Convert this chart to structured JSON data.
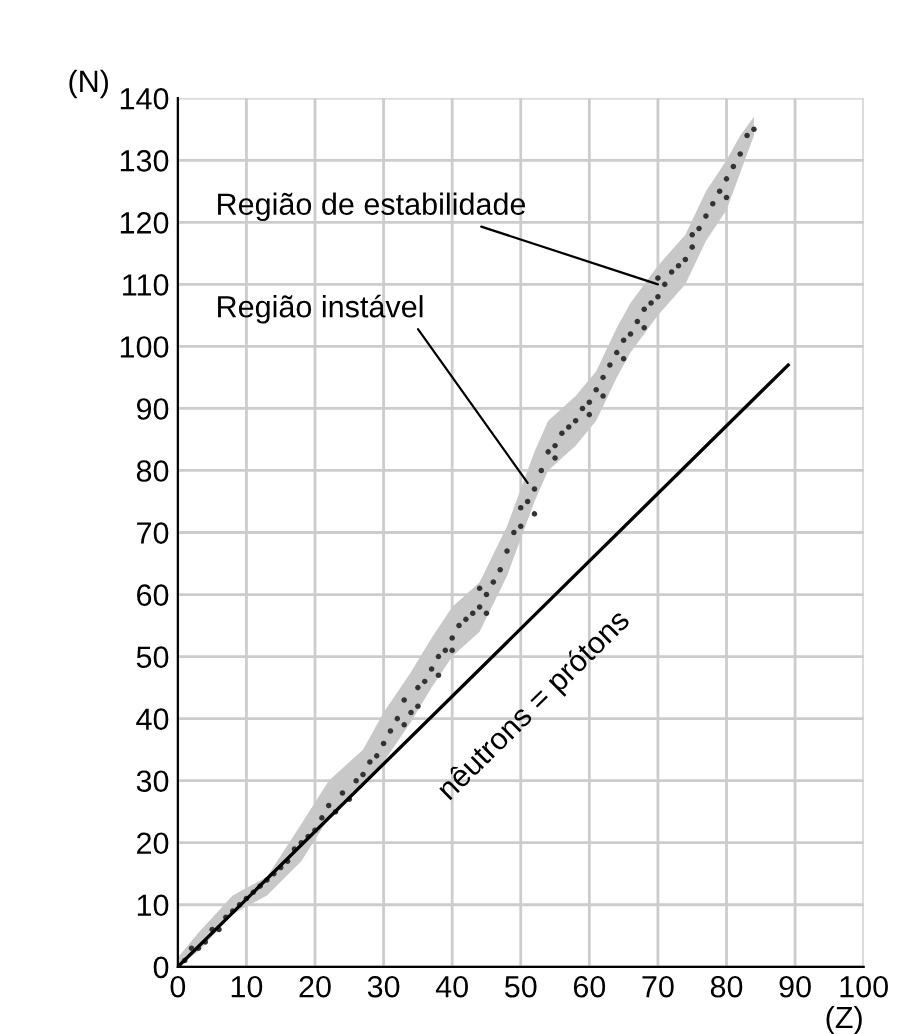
{
  "chart_data": {
    "type": "scatter",
    "xlabel": "(Z)",
    "ylabel": "(N)",
    "xlim": [
      0,
      100
    ],
    "ylim": [
      0,
      140
    ],
    "xticks": [
      0,
      10,
      20,
      30,
      40,
      50,
      60,
      70,
      80,
      90,
      100
    ],
    "yticks": [
      0,
      10,
      20,
      30,
      40,
      50,
      60,
      70,
      80,
      90,
      100,
      110,
      120,
      130,
      140
    ],
    "grid": true,
    "series": [
      {
        "type": "line",
        "color": "#c8c8c8",
        "x": [
          0,
          3,
          8,
          13,
          18,
          22,
          27,
          30,
          34,
          37,
          40,
          44,
          48,
          50,
          52,
          54,
          58,
          61,
          64,
          66,
          70,
          74,
          77,
          80,
          82,
          84
        ],
        "values": [
          null,
          null,
          null,
          null,
          null,
          null,
          null,
          null,
          null,
          null,
          null,
          null,
          null,
          null,
          null,
          null,
          null,
          null,
          null,
          null,
          null,
          null,
          null,
          null,
          null,
          null
        ],
        "lower": [
          0,
          2.5,
          8.5,
          11.5,
          17,
          24,
          29,
          33,
          39.5,
          45,
          50,
          54,
          63,
          69,
          75,
          80,
          84,
          88,
          95,
          99,
          105,
          110,
          117,
          122,
          128,
          134
        ],
        "upper": [
          1.5,
          5.5,
          11.5,
          14.5,
          23,
          30,
          35,
          41,
          47.5,
          53,
          58,
          62,
          71,
          77,
          83,
          88,
          92,
          96,
          103,
          107,
          113,
          118,
          125,
          130,
          134,
          137
        ]
      },
      {
        "marker": "circle",
        "color": "#333333",
        "x": [
          1,
          2,
          3,
          4,
          5,
          6,
          7,
          8,
          9,
          10,
          11,
          12,
          13,
          14,
          15,
          16,
          17,
          18,
          19,
          20,
          21,
          22,
          23,
          24,
          25,
          26,
          27,
          28,
          29,
          30,
          31,
          32,
          33,
          34,
          35,
          36,
          37,
          38,
          39,
          40,
          41,
          42,
          43,
          44,
          45,
          46,
          47,
          48,
          49,
          50,
          51,
          52,
          53,
          54,
          55,
          56,
          57,
          58,
          59,
          60,
          61,
          62,
          63,
          64,
          65,
          66,
          67,
          68,
          69,
          70,
          71,
          72,
          73,
          74,
          75,
          76,
          77,
          78,
          79,
          80,
          81,
          82,
          83,
          84,
          35,
          38,
          40,
          45,
          50,
          55,
          60,
          65,
          70,
          75,
          80,
          52,
          62,
          68,
          44,
          33
        ],
        "values": [
          1,
          3,
          3,
          4,
          6,
          6,
          8,
          9,
          10,
          11,
          12,
          13,
          14,
          15,
          16,
          17,
          19,
          20,
          21,
          22,
          24,
          26,
          25,
          28,
          27,
          30,
          31,
          33,
          34,
          36,
          38,
          40,
          43,
          41,
          45,
          46,
          48,
          50,
          51,
          53,
          55,
          56,
          57,
          58,
          60,
          62,
          64,
          67,
          70,
          71,
          75,
          77,
          80,
          83,
          84,
          86,
          87,
          88,
          90,
          91,
          93,
          95,
          97,
          99,
          101,
          102,
          104,
          106,
          107,
          108,
          110,
          112,
          113,
          114,
          116,
          119,
          121,
          123,
          125,
          127,
          129,
          131,
          134,
          135,
          42,
          47,
          51,
          57,
          74,
          82,
          89,
          98,
          111,
          118,
          124,
          73,
          92,
          103,
          61,
          39
        ]
      },
      {
        "type": "line",
        "color": "#000000",
        "x": [
          0,
          89
        ],
        "values": [
          0,
          97
        ]
      }
    ],
    "annotations": [
      {
        "text": "Região de estabilidade",
        "x": 70,
        "y": 110
      },
      {
        "text": "Região instável",
        "x": 51,
        "y": 78
      },
      "nêutrons = prótons"
    ]
  }
}
